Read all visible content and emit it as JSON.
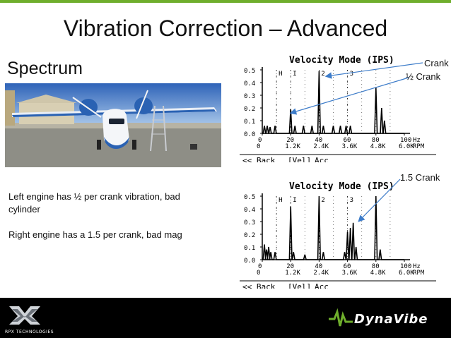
{
  "slide": {
    "title": "Vibration Correction – Advanced",
    "subtitle": "Spectrum",
    "description": [
      "Left engine has ½ per crank vibration, bad cylinder",
      "Right engine has a 1.5 per crank, bad mag"
    ]
  },
  "callouts": {
    "crank": "Crank",
    "half_crank": "½ Crank",
    "one_half_crank": "1.5 Crank"
  },
  "colors": {
    "accent": "#6fae2c",
    "footer": "#000000",
    "arrow": "#3d7cc9"
  },
  "footer": {
    "left_brand": "RPX TECHNOLOGIES",
    "right_brand": "DynaVibe"
  },
  "chart_data": [
    {
      "type": "line",
      "title": "Velocity Mode (IPS)",
      "ylim": [
        0,
        0.5
      ],
      "yticks": [
        "0.5",
        "0.4",
        "0.3",
        "0.2",
        "0.1",
        "0.0"
      ],
      "xticks_hz": [
        "0",
        "20",
        "40",
        "60",
        "80",
        "100"
      ],
      "xticks_rpm": [
        "0",
        "1.2K",
        "2.4K",
        "3.6K",
        "4.8K",
        "6.0K"
      ],
      "x_unit_hz": "Hz",
      "x_unit_rpm": "RPM",
      "markers": [
        "H",
        "I",
        "2",
        "3"
      ],
      "buttons": [
        "<< Back",
        "[Vel]",
        "Acc"
      ],
      "peaks": [
        [
          1.5,
          0.06
        ],
        [
          3.5,
          0.06
        ],
        [
          5.5,
          0.05
        ],
        [
          9,
          0.06
        ],
        [
          20,
          0.19
        ],
        [
          23,
          0.06
        ],
        [
          29,
          0.06
        ],
        [
          35,
          0.06
        ],
        [
          40,
          0.49
        ],
        [
          43,
          0.06
        ],
        [
          50,
          0.06
        ],
        [
          55,
          0.06
        ],
        [
          59,
          0.06
        ],
        [
          62,
          0.06
        ],
        [
          80,
          0.36
        ],
        [
          84,
          0.2
        ],
        [
          86,
          0.1
        ]
      ]
    },
    {
      "type": "line",
      "title": "Velocity Mode (IPS)",
      "ylim": [
        0,
        0.5
      ],
      "yticks": [
        "0.5",
        "0.4",
        "0.3",
        "0.2",
        "0.1",
        "0.0"
      ],
      "xticks_hz": [
        "0",
        "20",
        "40",
        "60",
        "80",
        "100"
      ],
      "xticks_rpm": [
        "0",
        "1.2K",
        "2.4K",
        "3.6K",
        "4.8K",
        "6.0K"
      ],
      "x_unit_hz": "Hz",
      "x_unit_rpm": "RPM",
      "markers": [
        "H",
        "I",
        "2",
        "3"
      ],
      "buttons": [
        "<< Back",
        "[Vel]",
        "Acc"
      ],
      "peaks": [
        [
          1.5,
          0.12
        ],
        [
          3,
          0.08
        ],
        [
          4.5,
          0.1
        ],
        [
          6,
          0.06
        ],
        [
          9,
          0.06
        ],
        [
          20,
          0.42
        ],
        [
          22,
          0.06
        ],
        [
          30,
          0.04
        ],
        [
          40,
          0.5
        ],
        [
          43,
          0.06
        ],
        [
          58,
          0.06
        ],
        [
          60,
          0.22
        ],
        [
          62,
          0.25
        ],
        [
          64,
          0.29
        ],
        [
          66,
          0.1
        ],
        [
          80,
          0.5
        ],
        [
          83,
          0.08
        ]
      ]
    }
  ]
}
